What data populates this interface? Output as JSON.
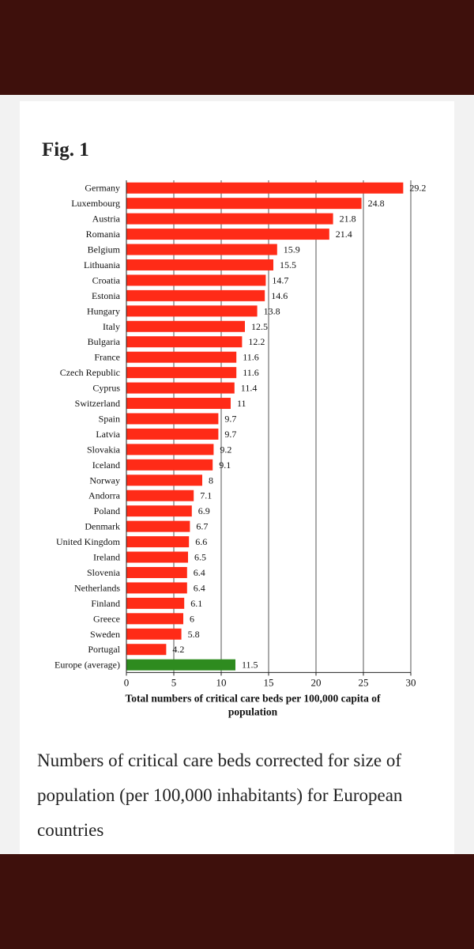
{
  "figure": {
    "label": "Fig. 1",
    "caption": "Numbers of critical care beds corrected for size of population (per 100,000 inhabitants) for European countries"
  },
  "colors": {
    "page_band": "#3e100c",
    "bar_country": "#ff2b17",
    "bar_average": "#2e8b1f",
    "grid": "#555555"
  },
  "chart_data": {
    "type": "bar",
    "orientation": "horizontal",
    "categories": [
      "Germany",
      "Luxembourg",
      "Austria",
      "Romania",
      "Belgium",
      "Lithuania",
      "Croatia",
      "Estonia",
      "Hungary",
      "Italy",
      "Bulgaria",
      "France",
      "Czech Republic",
      "Cyprus",
      "Switzerland",
      "Spain",
      "Latvia",
      "Slovakia",
      "Iceland",
      "Norway",
      "Andorra",
      "Poland",
      "Denmark",
      "United Kingdom",
      "Ireland",
      "Slovenia",
      "Netherlands",
      "Finland",
      "Greece",
      "Sweden",
      "Portugal",
      "Europe (average)"
    ],
    "values": [
      29.2,
      24.8,
      21.8,
      21.4,
      15.9,
      15.5,
      14.7,
      14.6,
      13.8,
      12.5,
      12.2,
      11.6,
      11.6,
      11.4,
      11,
      9.7,
      9.7,
      9.2,
      9.1,
      8,
      7.1,
      6.9,
      6.7,
      6.6,
      6.5,
      6.4,
      6.4,
      6.1,
      6,
      5.8,
      4.2,
      11.5
    ],
    "value_labels": [
      "29.2",
      "24.8",
      "21.8",
      "21.4",
      "15.9",
      "15.5",
      "14.7",
      "14.6",
      "13.8",
      "12.5",
      "12.2",
      "11.6",
      "11.6",
      "11.4",
      "11",
      "9.7",
      "9.7",
      "9.2",
      "9.1",
      "8",
      "7.1",
      "6.9",
      "6.7",
      "6.6",
      "6.5",
      "6.4",
      "6.4",
      "6.1",
      "6",
      "5.8",
      "4.2",
      "11.5"
    ],
    "highlight_category": "Europe (average)",
    "xlim": [
      0,
      30
    ],
    "xticks": [
      0,
      5,
      10,
      15,
      20,
      25,
      30
    ],
    "xlabel_lines": [
      "Total numbers of critical care beds per 100,000 capita of",
      "population"
    ],
    "ylabel": "",
    "grid": "vertical",
    "legend": "none"
  }
}
